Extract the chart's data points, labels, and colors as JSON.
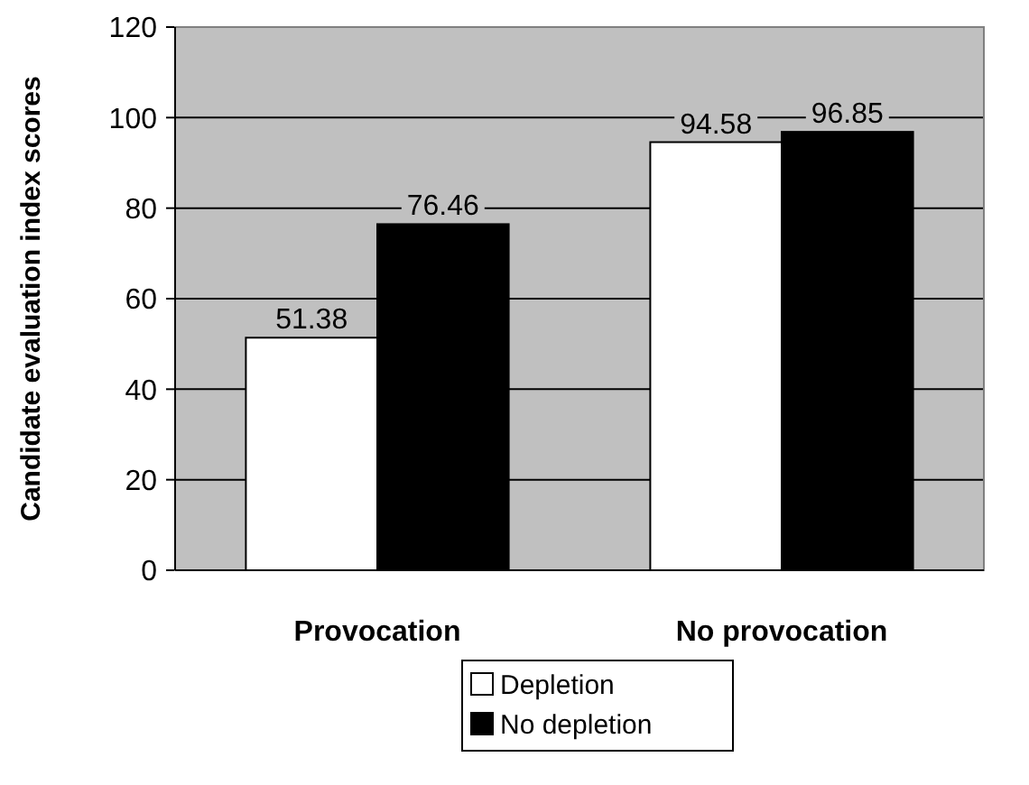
{
  "chart_data": {
    "type": "bar",
    "ylabel": "Candidate evaluation index scores",
    "categories": [
      "Provocation",
      "No provocation"
    ],
    "series": [
      {
        "name": "Depletion",
        "color": "#ffffff",
        "values": [
          51.38,
          94.58
        ]
      },
      {
        "name": "No depletion",
        "color": "#000000",
        "values": [
          76.46,
          96.85
        ]
      }
    ],
    "ylim": [
      0,
      120
    ],
    "yticks": [
      0,
      20,
      40,
      60,
      80,
      100,
      120
    ],
    "grid": "y",
    "legend": "bottom",
    "data_labels": true
  }
}
